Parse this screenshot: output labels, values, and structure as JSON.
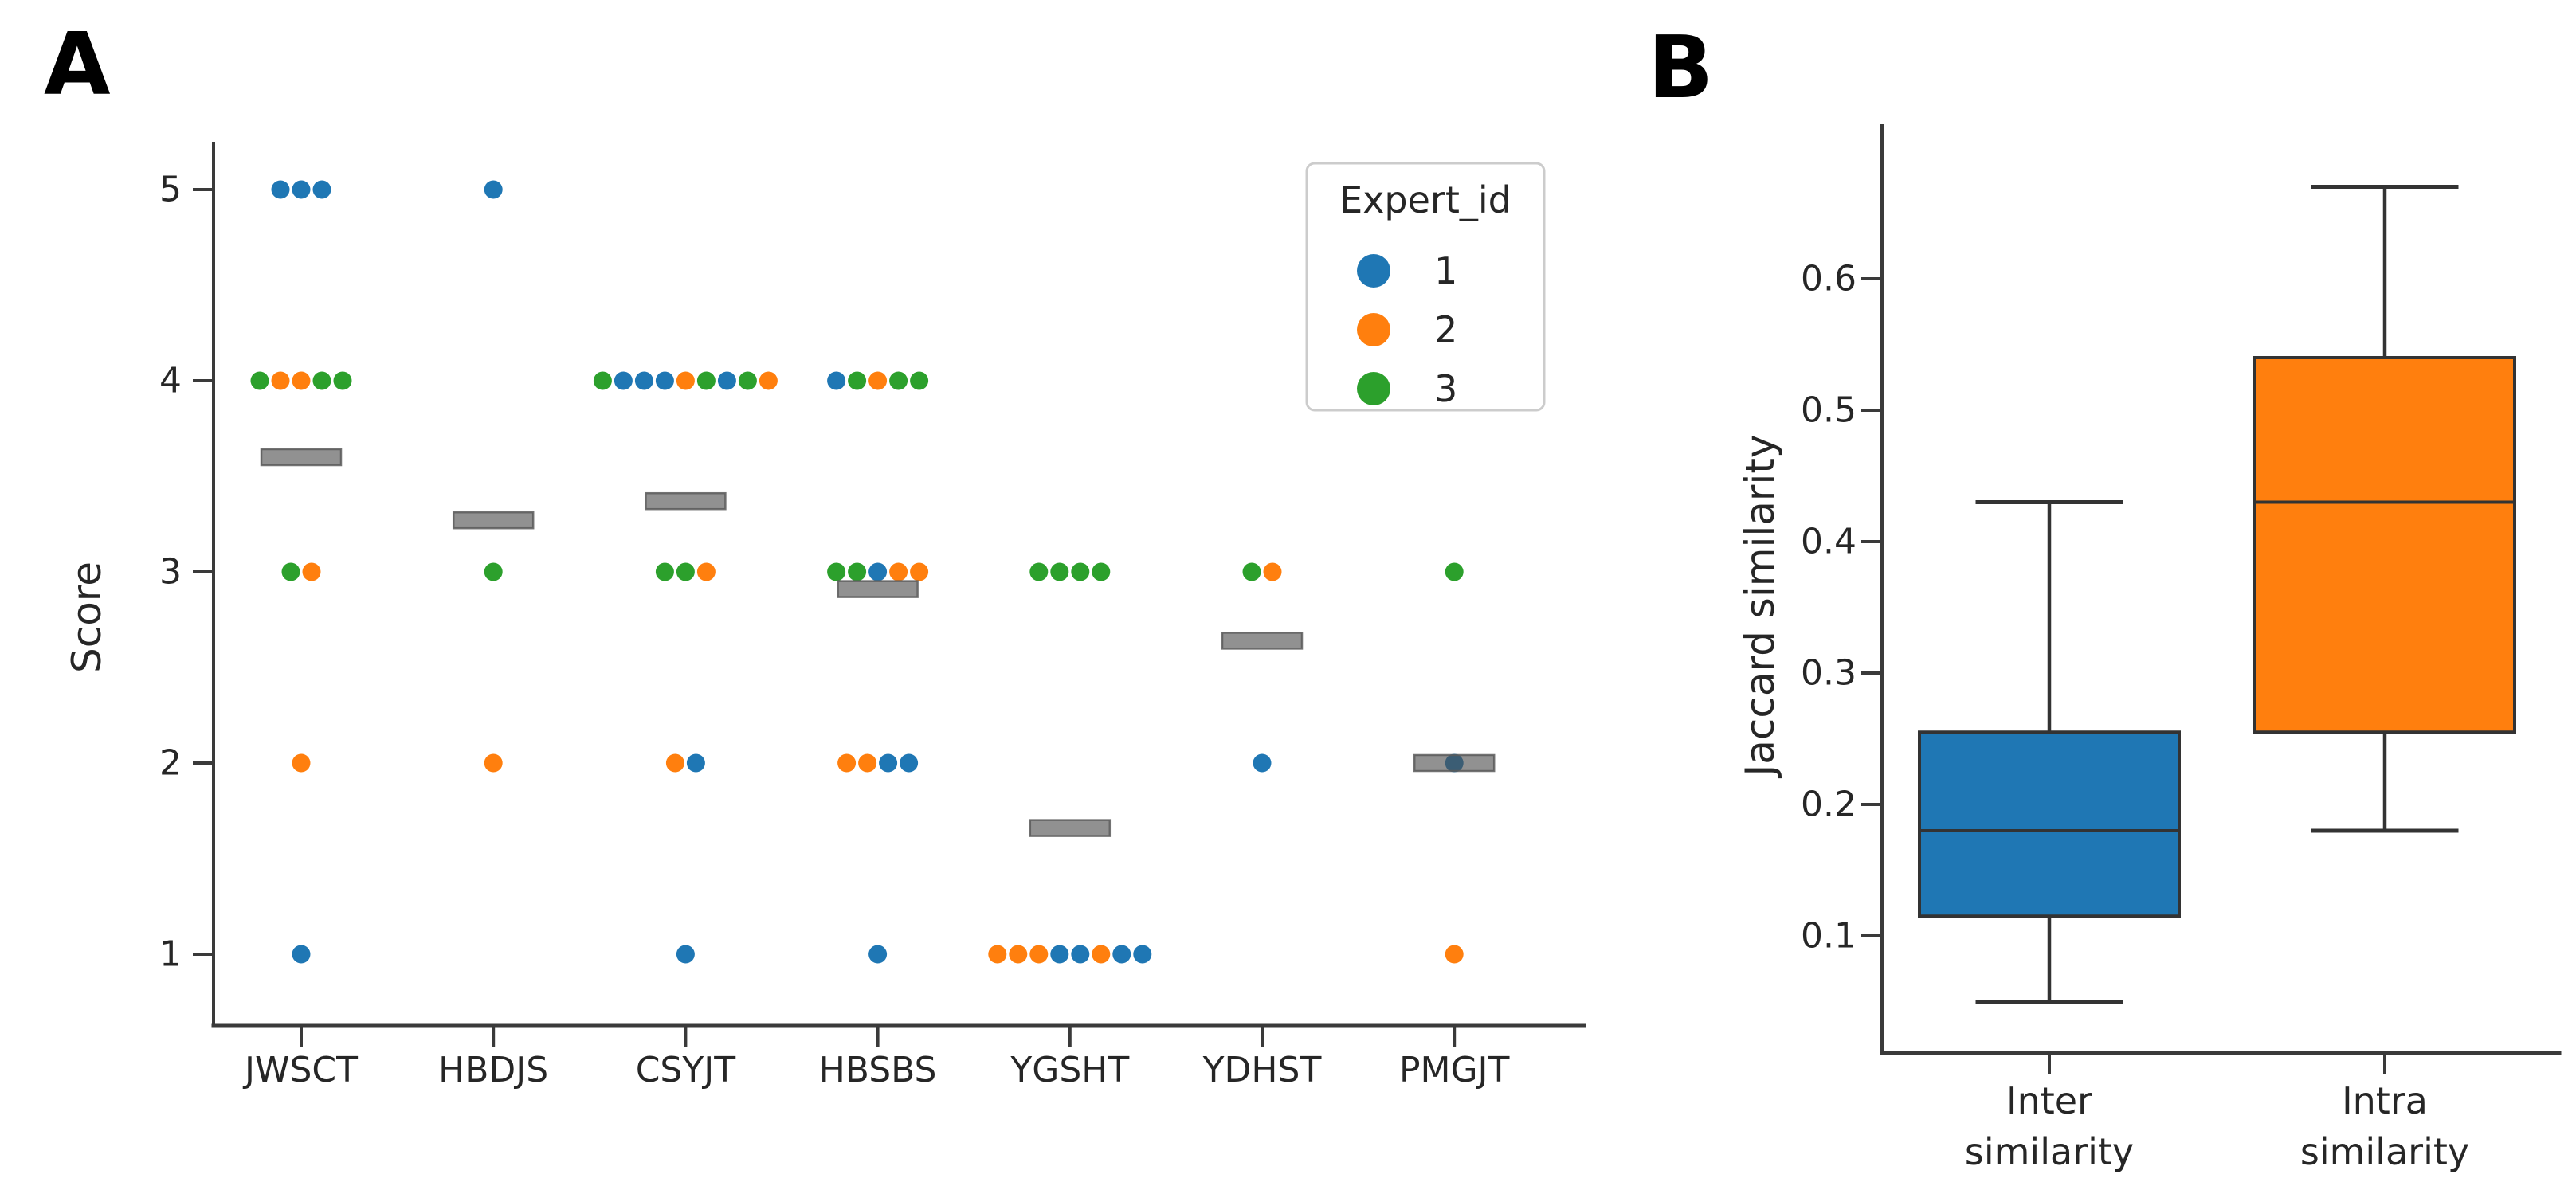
{
  "figure": {
    "panel_a_letter": "A",
    "panel_b_letter": "B"
  },
  "colors": {
    "expert_1": "#1f77b4",
    "expert_2": "#ff7f0e",
    "expert_3": "#2ca02c",
    "mean_bar_fill": "#4d4d4d",
    "mean_bar_edge": "#5a5a5a",
    "box_inter": "#1f77b4",
    "box_intra": "#ff7f0e",
    "box_edge": "#333333",
    "axis": "#3a3a3a",
    "text": "#262626",
    "legend_border": "#cccccc"
  },
  "chart_data": [
    {
      "type": "scatter",
      "panel": "A",
      "subtype": "strip-plot-with-category-means",
      "ylabel": "Score",
      "xlabel": "",
      "yticks": [
        1,
        2,
        3,
        4,
        5
      ],
      "ylim": [
        0.6,
        5.3
      ],
      "grid": false,
      "categories": [
        "JWSCT",
        "HBDJS",
        "CSYJT",
        "HBSBS",
        "YGSHT",
        "YDHST",
        "PMGJT"
      ],
      "legend": {
        "title": "Expert_id",
        "position": "upper right",
        "entries": [
          {
            "label": "1",
            "color_key": "expert_1"
          },
          {
            "label": "2",
            "color_key": "expert_2"
          },
          {
            "label": "3",
            "color_key": "expert_3"
          }
        ]
      },
      "points": [
        {
          "category": "JWSCT",
          "values": [
            {
              "score": 5,
              "experts": [
                1,
                1,
                1
              ]
            },
            {
              "score": 4,
              "experts": [
                3,
                2,
                2,
                3,
                3
              ]
            },
            {
              "score": 3,
              "experts": [
                3,
                2
              ]
            },
            {
              "score": 2,
              "experts": [
                2
              ]
            },
            {
              "score": 1,
              "experts": [
                1
              ]
            }
          ]
        },
        {
          "category": "HBDJS",
          "values": [
            {
              "score": 5,
              "experts": [
                1
              ]
            },
            {
              "score": 3,
              "experts": [
                3
              ]
            },
            {
              "score": 2,
              "experts": [
                2
              ]
            }
          ]
        },
        {
          "category": "CSYJT",
          "values": [
            {
              "score": 4,
              "experts": [
                3,
                1,
                1,
                1,
                2,
                3,
                1,
                3,
                2
              ]
            },
            {
              "score": 3,
              "experts": [
                3,
                3,
                2
              ]
            },
            {
              "score": 2,
              "experts": [
                2,
                1
              ]
            },
            {
              "score": 1,
              "experts": [
                1
              ]
            }
          ]
        },
        {
          "category": "HBSBS",
          "values": [
            {
              "score": 4,
              "experts": [
                1,
                3,
                2,
                3,
                3
              ]
            },
            {
              "score": 3,
              "experts": [
                3,
                3,
                1,
                2,
                2
              ]
            },
            {
              "score": 2,
              "experts": [
                2,
                2,
                1,
                1
              ]
            },
            {
              "score": 1,
              "experts": [
                1
              ]
            }
          ]
        },
        {
          "category": "YGSHT",
          "values": [
            {
              "score": 3,
              "experts": [
                3,
                3,
                3,
                3
              ]
            },
            {
              "score": 1,
              "experts": [
                2,
                2,
                2,
                1,
                1,
                2,
                1,
                1
              ]
            }
          ]
        },
        {
          "category": "YDHST",
          "values": [
            {
              "score": 3,
              "experts": [
                3,
                2
              ]
            },
            {
              "score": 2,
              "experts": [
                1
              ]
            }
          ]
        },
        {
          "category": "PMGJT",
          "values": [
            {
              "score": 3,
              "experts": [
                3
              ]
            },
            {
              "score": 2,
              "experts": [
                1
              ]
            },
            {
              "score": 1,
              "experts": [
                2
              ]
            }
          ]
        }
      ],
      "means": [
        3.6,
        3.27,
        3.37,
        2.91,
        1.66,
        2.64,
        2.0
      ]
    },
    {
      "type": "box",
      "panel": "B",
      "ylabel": "Jaccard similarity",
      "xlabel": "",
      "yticks": [
        0.1,
        0.2,
        0.3,
        0.4,
        0.5,
        0.6
      ],
      "ylim": [
        0.0,
        0.72
      ],
      "grid": false,
      "boxes": [
        {
          "label_lines": [
            "Inter",
            "similarity"
          ],
          "whisker_low": 0.05,
          "q1": 0.115,
          "median": 0.18,
          "q3": 0.255,
          "whisker_high": 0.43,
          "color_key": "box_inter"
        },
        {
          "label_lines": [
            "Intra",
            "similarity"
          ],
          "whisker_low": 0.18,
          "q1": 0.255,
          "median": 0.43,
          "q3": 0.54,
          "whisker_high": 0.67,
          "color_key": "box_intra"
        }
      ]
    }
  ]
}
